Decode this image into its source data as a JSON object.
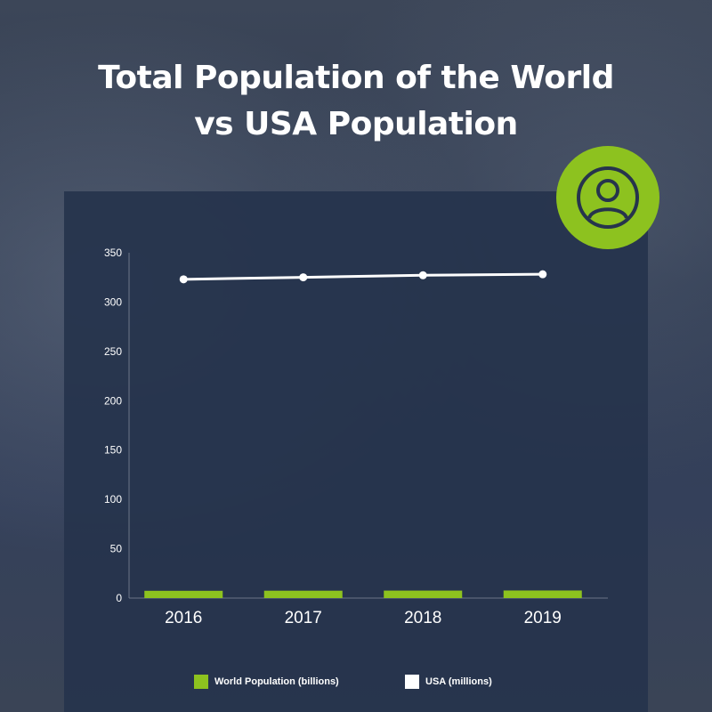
{
  "title_line1": "Total Population of the World",
  "title_line2": "vs USA Population",
  "badge_icon": "user-icon",
  "colors": {
    "world": "#8dc21f",
    "usa": "#ffffff",
    "panel": "#26344c"
  },
  "chart_data": {
    "type": "bar+line",
    "categories": [
      "2016",
      "2017",
      "2018",
      "2019"
    ],
    "series": [
      {
        "name": "World Population (billions)",
        "type": "bar",
        "values": [
          7.4,
          7.5,
          7.6,
          7.7
        ]
      },
      {
        "name": "USA (millions)",
        "type": "line",
        "values": [
          323.1,
          325.1,
          327.2,
          328.2
        ]
      }
    ],
    "ylim": [
      0,
      350
    ],
    "yticks": [
      "0",
      "50",
      "100",
      "150",
      "200",
      "250",
      "300",
      "350"
    ],
    "grid": false,
    "legend": "bottom"
  }
}
